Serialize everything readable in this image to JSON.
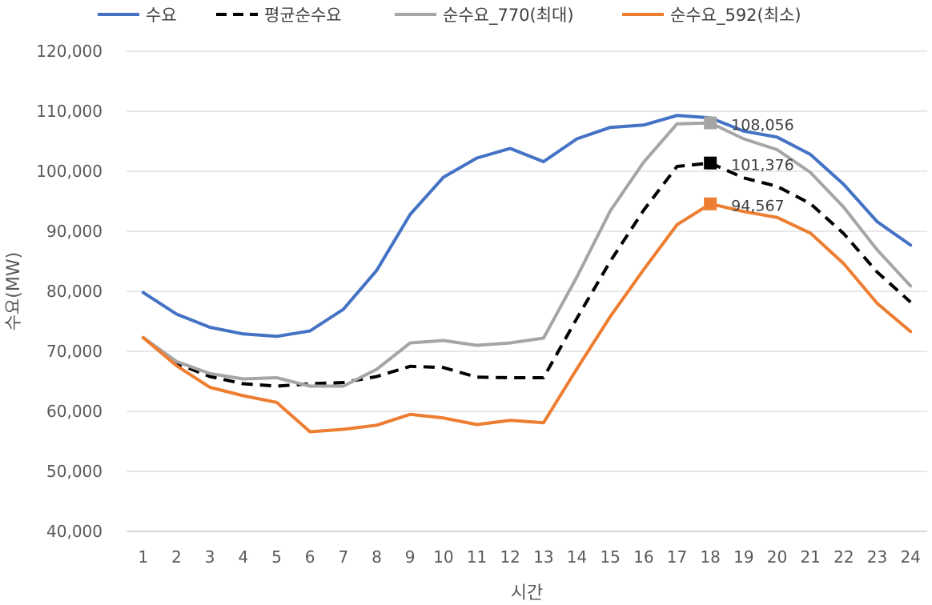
{
  "chart_data": {
    "type": "line",
    "title": "",
    "xlabel": "시간",
    "ylabel": "수요(MW)",
    "ylim": [
      40000,
      120000
    ],
    "yticks": [
      40000,
      50000,
      60000,
      70000,
      80000,
      90000,
      100000,
      110000,
      120000
    ],
    "ytick_labels": [
      "40,000",
      "50,000",
      "60,000",
      "70,000",
      "80,000",
      "90,000",
      "100,000",
      "110,000",
      "120,000"
    ],
    "grid": true,
    "legend_position": "top",
    "categories": [
      "1",
      "2",
      "3",
      "4",
      "5",
      "6",
      "7",
      "8",
      "9",
      "10",
      "11",
      "12",
      "13",
      "14",
      "15",
      "16",
      "17",
      "18",
      "19",
      "20",
      "21",
      "22",
      "23",
      "24"
    ],
    "series": [
      {
        "name": "수요",
        "color": "#4472C4",
        "dashed": false,
        "values": [
          79800,
          76200,
          74000,
          72900,
          72500,
          73400,
          77000,
          83500,
          92800,
          99000,
          102200,
          103800,
          101600,
          105400,
          107300,
          107700,
          109300,
          108900,
          106700,
          105700,
          102800,
          97800,
          91600,
          87700
        ]
      },
      {
        "name": "평균순수요",
        "color": "#000000",
        "dashed": true,
        "values": [
          72300,
          68000,
          65800,
          64600,
          64200,
          64600,
          64800,
          65800,
          67500,
          67300,
          65700,
          65600,
          65600,
          75500,
          85000,
          93500,
          100800,
          101376,
          98900,
          97500,
          94600,
          89600,
          83200,
          78200
        ],
        "marker_index": 17,
        "marker_label": "101,376"
      },
      {
        "name": "순수요_770(최대)",
        "color": "#A5A5A5",
        "dashed": false,
        "values": [
          72300,
          68300,
          66300,
          65400,
          65600,
          64200,
          64200,
          67000,
          71400,
          71800,
          71000,
          71400,
          72200,
          82400,
          93400,
          101500,
          107900,
          108056,
          105400,
          103600,
          99800,
          94000,
          86900,
          80900
        ],
        "marker_index": 17,
        "marker_label": "108,056"
      },
      {
        "name": "순수요_592(최소)",
        "color": "#ED7D31",
        "dashed": false,
        "values": [
          72300,
          67600,
          64000,
          62600,
          61500,
          56600,
          57000,
          57700,
          59500,
          58900,
          57800,
          58500,
          58100,
          67100,
          75800,
          83600,
          91100,
          94567,
          93300,
          92300,
          89700,
          84600,
          78000,
          73300
        ],
        "marker_index": 17,
        "marker_label": "94,567"
      }
    ]
  }
}
